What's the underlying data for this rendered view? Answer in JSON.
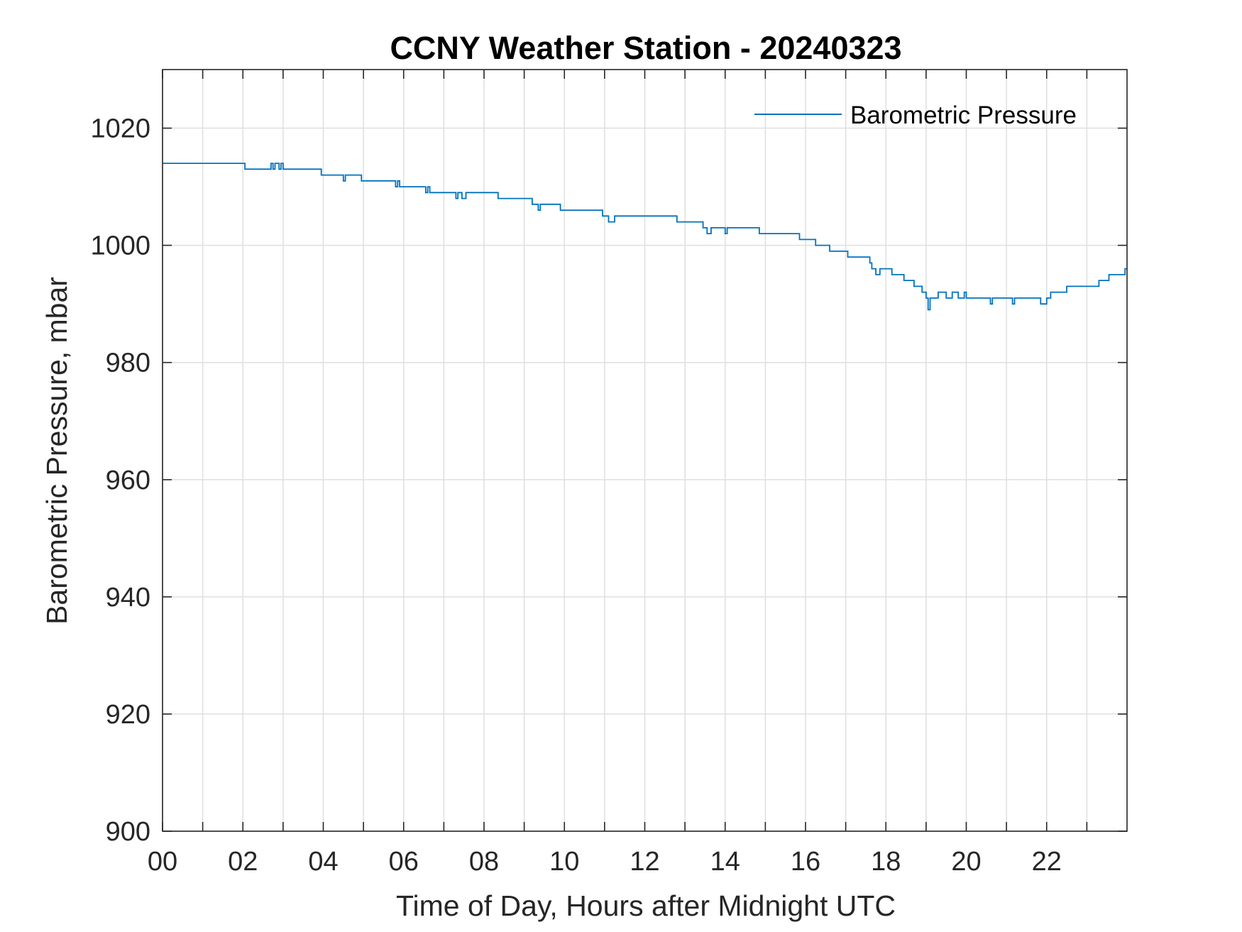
{
  "colors": {
    "series": "#0072BD",
    "grid": "#dfdfdf",
    "axis": "#262626",
    "background": "#ffffff"
  },
  "chart_data": {
    "type": "line",
    "title": "CCNY Weather Station - 20240323",
    "xlabel": "Time of Day, Hours after Midnight UTC",
    "ylabel": "Barometric Pressure, mbar",
    "xlim": [
      0,
      24
    ],
    "ylim": [
      900,
      1030
    ],
    "x_ticks": [
      0,
      2,
      4,
      6,
      8,
      10,
      12,
      14,
      16,
      18,
      20,
      22
    ],
    "x_tick_labels": [
      "00",
      "02",
      "04",
      "06",
      "08",
      "10",
      "12",
      "14",
      "16",
      "18",
      "20",
      "22"
    ],
    "x_minor_grid": [
      1,
      3,
      5,
      7,
      9,
      11,
      13,
      15,
      17,
      19,
      21,
      23
    ],
    "y_ticks": [
      900,
      920,
      940,
      960,
      980,
      1000,
      1020
    ],
    "y_tick_labels": [
      "900",
      "920",
      "940",
      "960",
      "980",
      "1000",
      "1020"
    ],
    "grid": true,
    "legend_position": "top-right",
    "series": [
      {
        "name": "Barometric Pressure",
        "step": true,
        "x": [
          0.0,
          2.05,
          2.7,
          2.75,
          2.8,
          2.9,
          2.95,
          3.0,
          3.95,
          4.5,
          4.55,
          4.6,
          4.95,
          5.8,
          5.85,
          5.9,
          6.55,
          6.6,
          6.65,
          7.3,
          7.35,
          7.45,
          7.55,
          8.35,
          9.2,
          9.35,
          9.4,
          9.9,
          10.95,
          11.1,
          11.25,
          12.8,
          13.45,
          13.55,
          13.65,
          14.0,
          14.05,
          14.85,
          15.85,
          16.25,
          16.6,
          17.05,
          17.6,
          17.65,
          17.75,
          17.85,
          18.15,
          18.45,
          18.7,
          18.9,
          19.0,
          19.05,
          19.1,
          19.3,
          19.5,
          19.65,
          19.8,
          19.95,
          20.0,
          20.6,
          20.65,
          21.15,
          21.2,
          21.85,
          22.0,
          22.1,
          22.5,
          23.0,
          23.3,
          23.55,
          23.95,
          24.0
        ],
        "y": [
          1014,
          1013,
          1014,
          1013,
          1014,
          1013,
          1014,
          1013,
          1012,
          1011,
          1012,
          1012,
          1011,
          1010,
          1011,
          1010,
          1009,
          1010,
          1009,
          1008,
          1009,
          1008,
          1009,
          1008,
          1007,
          1006,
          1007,
          1006,
          1005,
          1004,
          1005,
          1004,
          1003,
          1002,
          1003,
          1002,
          1003,
          1002,
          1001,
          1000,
          999,
          998,
          997,
          996,
          995,
          996,
          995,
          994,
          993,
          992,
          991,
          989,
          991,
          992,
          991,
          992,
          991,
          992,
          991,
          990,
          991,
          990,
          991,
          990,
          991,
          992,
          993,
          993,
          994,
          995,
          996,
          996
        ]
      }
    ]
  }
}
